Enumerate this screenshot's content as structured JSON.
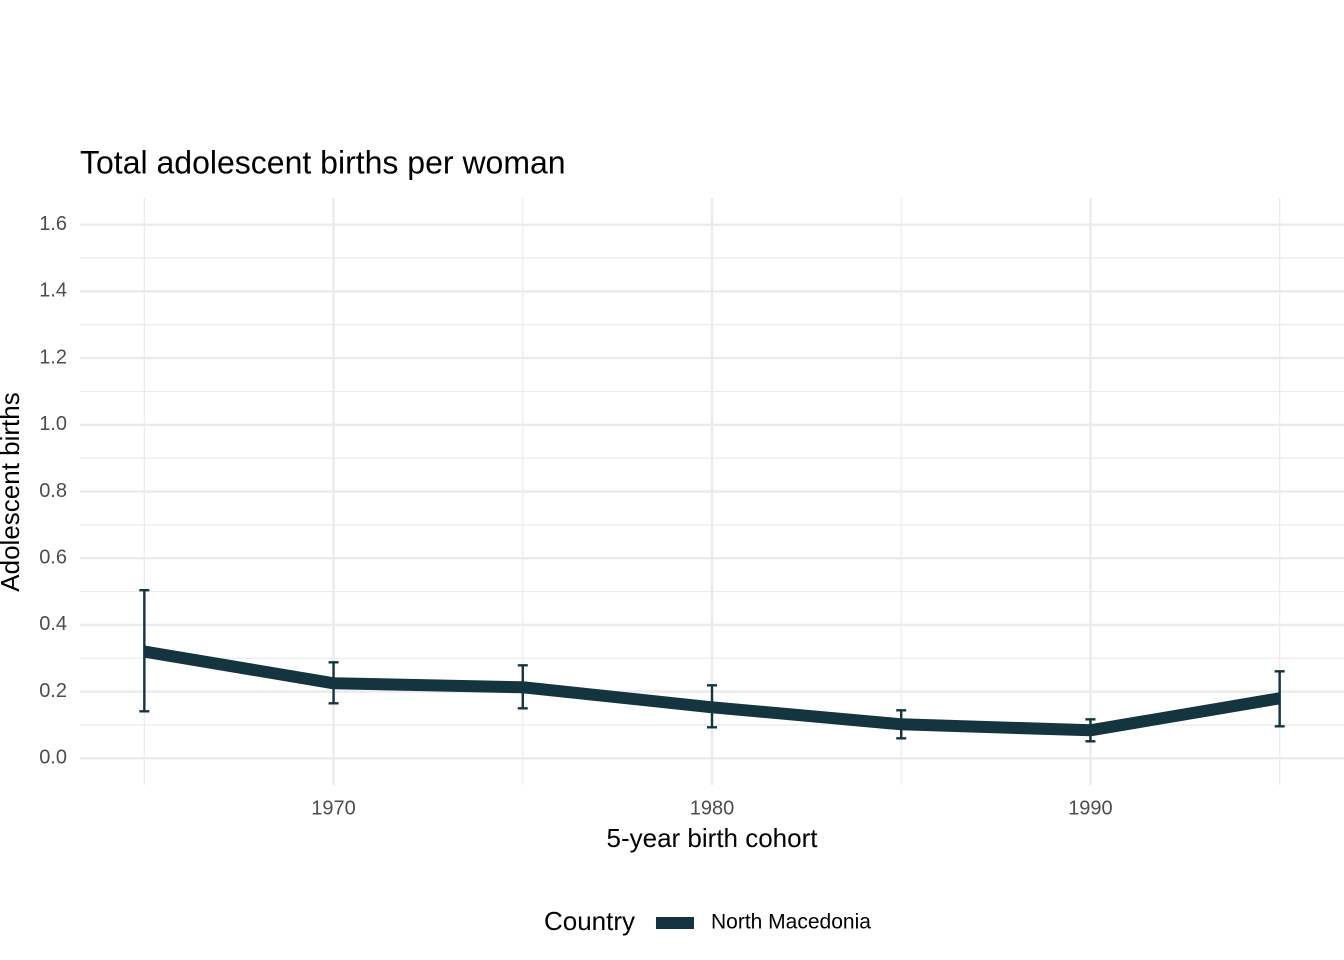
{
  "chart_data": {
    "type": "line",
    "title": "Total adolescent births per woman",
    "x_label": "5-year birth cohort",
    "y_label": "Adolescent births",
    "legend_title": "Country",
    "x": [
      1965,
      1970,
      1975,
      1980,
      1985,
      1990,
      1995
    ],
    "series": [
      {
        "name": "North Macedonia",
        "color": "#14343f",
        "values": [
          0.32,
          0.225,
          0.213,
          0.153,
          0.102,
          0.084,
          0.18
        ],
        "lower": [
          0.141,
          0.165,
          0.15,
          0.093,
          0.06,
          0.051,
          0.096
        ],
        "upper": [
          0.504,
          0.288,
          0.279,
          0.219,
          0.144,
          0.117,
          0.261
        ]
      }
    ],
    "xlim": [
      1963.3,
      1996.7
    ],
    "xticks": [
      1970,
      1980,
      1990
    ],
    "ylim": [
      -0.08,
      1.68
    ],
    "yticks": [
      {
        "value": 0,
        "label": "0.0"
      },
      0.2,
      0.4,
      0.6,
      0.8,
      {
        "value": 1,
        "label": "1.0"
      },
      1.2,
      1.4,
      1.6
    ],
    "grid": true,
    "legend": "bottom"
  }
}
